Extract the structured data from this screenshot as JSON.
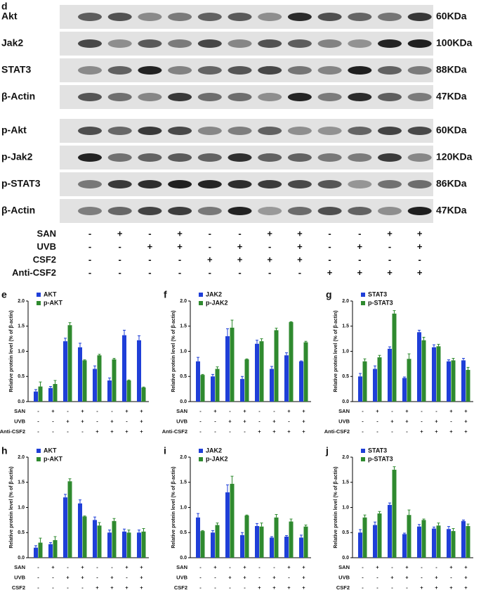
{
  "blot": {
    "panel_label": "d",
    "rows": [
      {
        "label": "Akt",
        "size": "60KDa"
      },
      {
        "label": "Jak2",
        "size": "100KDa"
      },
      {
        "label": "STAT3",
        "size": "88KDa"
      },
      {
        "label": "β-Actin",
        "size": "47KDa"
      },
      {
        "label": "p-Akt",
        "size": "60KDa"
      },
      {
        "label": "p-Jak2",
        "size": "120KDa"
      },
      {
        "label": "p-STAT3",
        "size": "86KDa"
      },
      {
        "label": "β-Actin",
        "size": "47KDa"
      }
    ],
    "conditions": [
      {
        "name": "SAN",
        "marks": [
          "-",
          "+",
          "-",
          "+",
          "-",
          "-",
          "+",
          "+",
          "-",
          "-",
          "+",
          "+"
        ]
      },
      {
        "name": "UVB",
        "marks": [
          "-",
          "-",
          "+",
          "+",
          "-",
          "+",
          "-",
          "+",
          "-",
          "+",
          "-",
          "+"
        ]
      },
      {
        "name": "CSF2",
        "marks": [
          "-",
          "-",
          "-",
          "-",
          "+",
          "+",
          "+",
          "+",
          "-",
          "-",
          "-",
          "-"
        ]
      },
      {
        "name": "Anti-CSF2",
        "marks": [
          "-",
          "-",
          "-",
          "-",
          "-",
          "-",
          "-",
          "-",
          "+",
          "+",
          "+",
          "+"
        ]
      }
    ]
  },
  "chart_data": [
    {
      "type": "bar",
      "panel_label": "e",
      "y_label": "Relative protein level (% of β-actin)",
      "categories": [
        null,
        null,
        null,
        null,
        null,
        null,
        null,
        null
      ],
      "series": [
        {
          "name": "AKT",
          "color": "#1f3fd8",
          "values": [
            0.2,
            0.27,
            1.2,
            1.08,
            0.65,
            0.42,
            1.32,
            1.22
          ],
          "errors": [
            0.04,
            0.03,
            0.06,
            0.08,
            0.06,
            0.05,
            0.1,
            0.09
          ]
        },
        {
          "name": "p-AKT",
          "color": "#2f8a2f",
          "values": [
            0.3,
            0.35,
            1.52,
            0.82,
            0.92,
            0.84,
            0.42,
            0.28
          ],
          "errors": [
            0.09,
            0.07,
            0.05,
            0.01,
            0.02,
            0.02,
            0.01,
            0.01
          ]
        }
      ],
      "conditions": [
        {
          "name": "SAN",
          "marks": [
            "-",
            "+",
            "-",
            "+",
            "-",
            "-",
            "+",
            "+"
          ]
        },
        {
          "name": "UVB",
          "marks": [
            "-",
            "-",
            "+",
            "+",
            "-",
            "+",
            "-",
            "+"
          ]
        },
        {
          "name": "Anti-CSF2",
          "marks": [
            "-",
            "-",
            "-",
            "-",
            "+",
            "+",
            "+",
            "+"
          ]
        }
      ],
      "ylim": [
        0,
        2
      ],
      "yticks": [
        {
          "value": 0,
          "label": "0.0"
        },
        {
          "value": 0.5,
          "label": "0.5"
        },
        {
          "value": 1,
          "label": "1.0"
        },
        {
          "value": 1.5,
          "label": "1.5"
        },
        {
          "value": 2,
          "label": "2.0"
        }
      ]
    },
    {
      "type": "bar",
      "panel_label": "f",
      "y_label": "Relative protein level (% of β-actin)",
      "categories": [
        null,
        null,
        null,
        null,
        null,
        null,
        null,
        null
      ],
      "series": [
        {
          "name": "JAK2",
          "color": "#1f3fd8",
          "values": [
            0.8,
            0.5,
            1.3,
            0.45,
            1.15,
            0.65,
            0.92,
            0.8
          ],
          "errors": [
            0.08,
            0.04,
            0.15,
            0.05,
            0.07,
            0.05,
            0.05,
            0.01
          ]
        },
        {
          "name": "p-JAK2",
          "color": "#2f8a2f",
          "values": [
            0.53,
            0.65,
            1.47,
            0.84,
            1.2,
            1.42,
            1.58,
            1.18
          ],
          "errors": [
            0.01,
            0.04,
            0.15,
            0.01,
            0.05,
            0.04,
            0.01,
            0.02
          ]
        }
      ],
      "conditions": [
        {
          "name": "SAN",
          "marks": [
            "-",
            "+",
            "-",
            "+",
            "-",
            "-",
            "+",
            "+"
          ]
        },
        {
          "name": "UVB",
          "marks": [
            "-",
            "-",
            "+",
            "+",
            "-",
            "+",
            "-",
            "+"
          ]
        },
        {
          "name": "Anti-CSF2",
          "marks": [
            "-",
            "-",
            "-",
            "-",
            "+",
            "+",
            "+",
            "+"
          ]
        }
      ],
      "ylim": [
        0,
        2
      ],
      "yticks": [
        {
          "value": 0,
          "label": "0.0"
        },
        {
          "value": 0.5,
          "label": "0.5"
        },
        {
          "value": 1,
          "label": "1.0"
        },
        {
          "value": 1.5,
          "label": "1.5"
        },
        {
          "value": 2,
          "label": "2.0"
        }
      ]
    },
    {
      "type": "bar",
      "panel_label": "g",
      "y_label": "Relative protein level (% of β-actin)",
      "categories": [
        null,
        null,
        null,
        null,
        null,
        null,
        null,
        null
      ],
      "series": [
        {
          "name": "STAT3",
          "color": "#1f3fd8",
          "values": [
            0.5,
            0.65,
            1.05,
            0.47,
            1.38,
            1.08,
            0.8,
            0.82
          ],
          "errors": [
            0.06,
            0.06,
            0.04,
            0.02,
            0.04,
            0.05,
            0.03,
            0.04
          ]
        },
        {
          "name": "p-STAT3",
          "color": "#2f8a2f",
          "values": [
            0.8,
            0.88,
            1.75,
            0.85,
            1.22,
            1.1,
            0.82,
            0.63
          ],
          "errors": [
            0.05,
            0.04,
            0.06,
            0.1,
            0.06,
            0.04,
            0.04,
            0.05
          ]
        }
      ],
      "conditions": [
        {
          "name": "SAN",
          "marks": [
            "-",
            "+",
            "-",
            "+",
            "-",
            "-",
            "+",
            "+"
          ]
        },
        {
          "name": "UVB",
          "marks": [
            "-",
            "-",
            "+",
            "+",
            "-",
            "+",
            "-",
            "+"
          ]
        },
        {
          "name": "Anti-CSF2",
          "marks": [
            "-",
            "-",
            "-",
            "-",
            "+",
            "+",
            "+",
            "+"
          ]
        }
      ],
      "ylim": [
        0,
        2
      ],
      "yticks": [
        {
          "value": 0,
          "label": "0.0"
        },
        {
          "value": 0.5,
          "label": "0.5"
        },
        {
          "value": 1,
          "label": "1.0"
        },
        {
          "value": 1.5,
          "label": "1.5"
        },
        {
          "value": 2,
          "label": "2.0"
        }
      ]
    },
    {
      "type": "bar",
      "panel_label": "h",
      "y_label": "Relative protein level (% of β-actin)",
      "categories": [
        null,
        null,
        null,
        null,
        null,
        null,
        null,
        null
      ],
      "series": [
        {
          "name": "AKT",
          "color": "#1f3fd8",
          "values": [
            0.2,
            0.27,
            1.2,
            1.08,
            0.75,
            0.5,
            0.52,
            0.5
          ],
          "errors": [
            0.04,
            0.03,
            0.06,
            0.07,
            0.06,
            0.05,
            0.05,
            0.05
          ]
        },
        {
          "name": "p-AKT",
          "color": "#2f8a2f",
          "values": [
            0.3,
            0.35,
            1.52,
            0.82,
            0.64,
            0.73,
            0.5,
            0.52
          ],
          "errors": [
            0.09,
            0.07,
            0.05,
            0.01,
            0.06,
            0.05,
            0.05,
            0.06
          ]
        }
      ],
      "conditions": [
        {
          "name": "SAN",
          "marks": [
            "-",
            "+",
            "-",
            "+",
            "-",
            "-",
            "+",
            "+"
          ]
        },
        {
          "name": "UVB",
          "marks": [
            "-",
            "-",
            "+",
            "+",
            "-",
            "+",
            "-",
            "+"
          ]
        },
        {
          "name": "CSF2",
          "marks": [
            "-",
            "-",
            "-",
            "-",
            "+",
            "+",
            "+",
            "+"
          ]
        }
      ],
      "ylim": [
        0,
        2
      ],
      "yticks": [
        {
          "value": 0,
          "label": "0.0"
        },
        {
          "value": 0.5,
          "label": "0.5"
        },
        {
          "value": 1,
          "label": "1.0"
        },
        {
          "value": 1.5,
          "label": "1.5"
        },
        {
          "value": 2,
          "label": "2.0"
        }
      ]
    },
    {
      "type": "bar",
      "panel_label": "i",
      "y_label": "Relative protein level (% of β-actin)",
      "categories": [
        null,
        null,
        null,
        null,
        null,
        null,
        null,
        null
      ],
      "series": [
        {
          "name": "JAK2",
          "color": "#1f3fd8",
          "values": [
            0.8,
            0.5,
            1.3,
            0.45,
            0.63,
            0.4,
            0.42,
            0.4
          ],
          "errors": [
            0.08,
            0.04,
            0.15,
            0.05,
            0.05,
            0.02,
            0.02,
            0.05
          ]
        },
        {
          "name": "p-JAK2",
          "color": "#2f8a2f",
          "values": [
            0.53,
            0.65,
            1.47,
            0.84,
            0.62,
            0.8,
            0.72,
            0.62
          ],
          "errors": [
            0.01,
            0.04,
            0.15,
            0.01,
            0.07,
            0.06,
            0.05,
            0.03
          ]
        }
      ],
      "conditions": [
        {
          "name": "SAN",
          "marks": [
            "-",
            "+",
            "-",
            "+",
            "-",
            "-",
            "+",
            "+"
          ]
        },
        {
          "name": "UVB",
          "marks": [
            "-",
            "-",
            "+",
            "+",
            "-",
            "+",
            "-",
            "+"
          ]
        },
        {
          "name": "CSF2",
          "marks": [
            "-",
            "-",
            "-",
            "-",
            "+",
            "+",
            "+",
            "+"
          ]
        }
      ],
      "ylim": [
        0,
        2
      ],
      "yticks": [
        {
          "value": 0,
          "label": "0.0"
        },
        {
          "value": 0.5,
          "label": "0.5"
        },
        {
          "value": 1,
          "label": "1.0"
        },
        {
          "value": 1.5,
          "label": "1.5"
        },
        {
          "value": 2,
          "label": "2.0"
        }
      ]
    },
    {
      "type": "bar",
      "panel_label": "j",
      "y_label": "Relative protein level (% of β-actin)",
      "categories": [
        null,
        null,
        null,
        null,
        null,
        null,
        null,
        null
      ],
      "series": [
        {
          "name": "STAT3",
          "color": "#1f3fd8",
          "values": [
            0.5,
            0.65,
            1.05,
            0.47,
            0.62,
            0.58,
            0.57,
            0.73
          ],
          "errors": [
            0.06,
            0.06,
            0.04,
            0.02,
            0.04,
            0.03,
            0.05,
            0.02
          ]
        },
        {
          "name": "p-STAT3",
          "color": "#2f8a2f",
          "values": [
            0.8,
            0.88,
            1.75,
            0.85,
            0.75,
            0.64,
            0.53,
            0.63
          ],
          "errors": [
            0.05,
            0.04,
            0.06,
            0.1,
            0.02,
            0.05,
            0.05,
            0.04
          ]
        }
      ],
      "conditions": [
        {
          "name": "SAN",
          "marks": [
            "-",
            "+",
            "-",
            "+",
            "-",
            "-",
            "+",
            "+"
          ]
        },
        {
          "name": "UVB",
          "marks": [
            "-",
            "-",
            "+",
            "+",
            "-",
            "+",
            "-",
            "+"
          ]
        },
        {
          "name": "CSF2",
          "marks": [
            "-",
            "-",
            "-",
            "-",
            "+",
            "+",
            "+",
            "+"
          ]
        }
      ],
      "ylim": [
        0,
        2
      ],
      "yticks": [
        {
          "value": 0,
          "label": "0.0"
        },
        {
          "value": 0.5,
          "label": "0.5"
        },
        {
          "value": 1,
          "label": "1.0"
        },
        {
          "value": 1.5,
          "label": "1.5"
        },
        {
          "value": 2,
          "label": "2.0"
        }
      ]
    }
  ]
}
